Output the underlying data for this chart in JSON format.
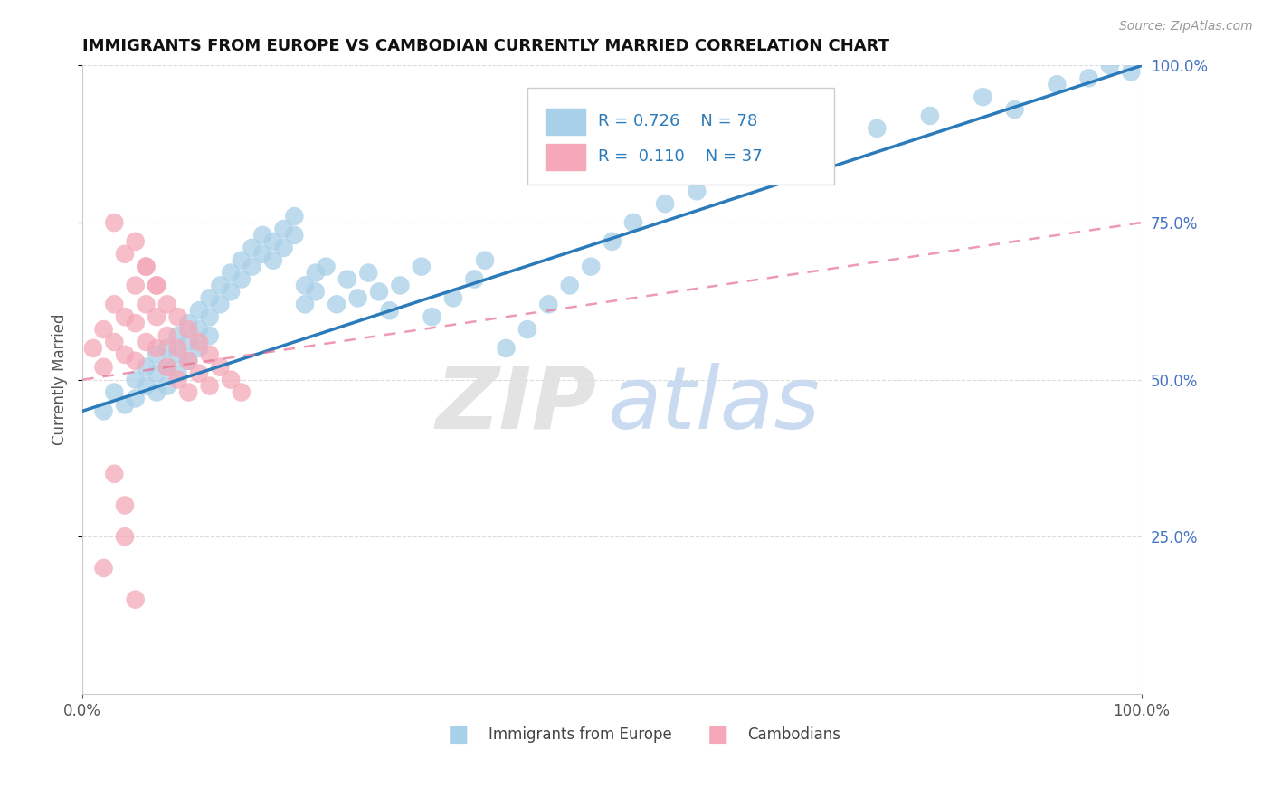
{
  "title": "IMMIGRANTS FROM EUROPE VS CAMBODIAN CURRENTLY MARRIED CORRELATION CHART",
  "source_text": "Source: ZipAtlas.com",
  "ylabel": "Currently Married",
  "xlim": [
    0,
    100
  ],
  "ylim": [
    0,
    100
  ],
  "blue_color": "#A8D0E8",
  "pink_color": "#F4A8B8",
  "blue_line_color": "#2B7BBA",
  "pink_line_color": "#E87090",
  "legend_r1": "R = 0.726",
  "legend_n1": "N = 78",
  "legend_r2": "R =  0.110",
  "legend_n2": "N = 37",
  "blue_scatter_x": [
    2,
    3,
    4,
    5,
    5,
    6,
    6,
    7,
    7,
    7,
    8,
    8,
    8,
    9,
    9,
    9,
    10,
    10,
    10,
    11,
    11,
    11,
    12,
    12,
    12,
    13,
    13,
    14,
    14,
    15,
    15,
    16,
    16,
    17,
    17,
    18,
    18,
    19,
    19,
    20,
    20,
    21,
    21,
    22,
    22,
    23,
    24,
    25,
    26,
    27,
    28,
    29,
    30,
    32,
    33,
    35,
    37,
    38,
    40,
    42,
    44,
    46,
    48,
    50,
    52,
    55,
    58,
    62,
    65,
    70,
    75,
    80,
    85,
    88,
    92,
    95,
    97,
    99
  ],
  "blue_scatter_y": [
    45,
    48,
    46,
    50,
    47,
    52,
    49,
    54,
    51,
    48,
    55,
    52,
    49,
    57,
    54,
    51,
    59,
    56,
    53,
    61,
    58,
    55,
    63,
    60,
    57,
    65,
    62,
    67,
    64,
    69,
    66,
    71,
    68,
    73,
    70,
    72,
    69,
    74,
    71,
    76,
    73,
    65,
    62,
    67,
    64,
    68,
    62,
    66,
    63,
    67,
    64,
    61,
    65,
    68,
    60,
    63,
    66,
    69,
    55,
    58,
    62,
    65,
    68,
    72,
    75,
    78,
    80,
    83,
    85,
    88,
    90,
    92,
    95,
    93,
    97,
    98,
    100,
    99
  ],
  "pink_scatter_x": [
    1,
    2,
    2,
    3,
    3,
    4,
    4,
    5,
    5,
    5,
    6,
    6,
    6,
    7,
    7,
    7,
    8,
    8,
    8,
    9,
    9,
    9,
    10,
    10,
    10,
    11,
    11,
    12,
    12,
    13,
    14,
    15,
    3,
    4,
    5,
    6,
    7
  ],
  "pink_scatter_y": [
    55,
    58,
    52,
    62,
    56,
    60,
    54,
    65,
    59,
    53,
    68,
    62,
    56,
    65,
    60,
    55,
    62,
    57,
    52,
    60,
    55,
    50,
    58,
    53,
    48,
    56,
    51,
    54,
    49,
    52,
    50,
    48,
    75,
    70,
    72,
    68,
    65
  ],
  "pink_outlier_x": [
    2,
    4,
    5,
    3,
    4
  ],
  "pink_outlier_y": [
    20,
    30,
    15,
    35,
    25
  ],
  "watermark_zip": "ZIP",
  "watermark_atlas": "atlas",
  "ytick_positions": [
    25,
    50,
    75,
    100
  ],
  "ytick_labels_right": [
    "25.0%",
    "50.0%",
    "75.0%",
    "100.0%"
  ]
}
